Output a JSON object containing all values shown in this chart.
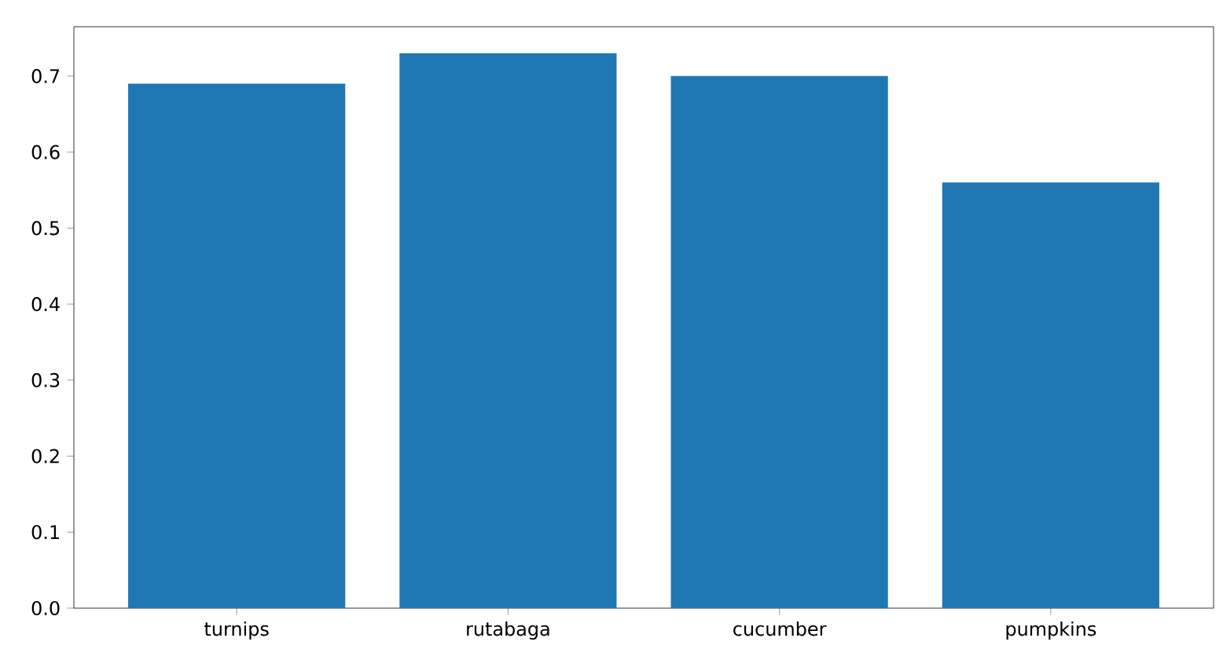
{
  "chart_data": {
    "type": "bar",
    "categories": [
      "turnips",
      "rutabaga",
      "cucumber",
      "pumpkins"
    ],
    "values": [
      0.69,
      0.73,
      0.7,
      0.56
    ],
    "color": "#1f77b4",
    "ylim": [
      0,
      0.765
    ],
    "yticks": [
      {
        "value": 0,
        "label": "0.0"
      },
      0.1,
      0.2,
      0.3,
      0.4,
      0.5,
      0.6,
      0.7
    ]
  }
}
